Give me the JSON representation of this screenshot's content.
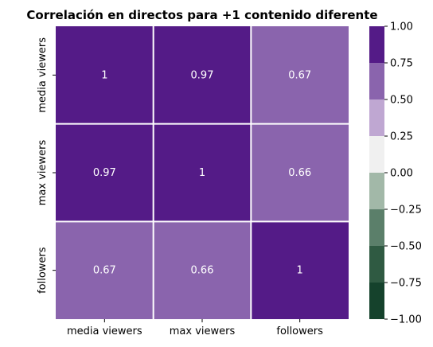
{
  "chart_data": {
    "type": "heatmap",
    "title": "Correlación en directos para +1 contenido diferente",
    "x_labels": [
      "media viewers",
      "max viewers",
      "followers"
    ],
    "y_labels": [
      "media viewers",
      "max viewers",
      "followers"
    ],
    "matrix": [
      [
        1,
        0.97,
        0.67
      ],
      [
        0.97,
        1,
        0.66
      ],
      [
        0.67,
        0.66,
        1
      ]
    ],
    "cell_labels": [
      [
        "1",
        "0.97",
        "0.67"
      ],
      [
        "0.97",
        "1",
        "0.66"
      ],
      [
        "0.67",
        "0.66",
        "1"
      ]
    ],
    "colorbar": {
      "range": [
        -1.0,
        1.0
      ],
      "tick_values": [
        1.0,
        0.75,
        0.5,
        0.25,
        0.0,
        -0.25,
        -0.5,
        -0.75,
        -1.0
      ],
      "tick_labels": [
        "1.00",
        "0.75",
        "0.50",
        "0.25",
        "0.00",
        "−0.25",
        "−0.50",
        "−0.75",
        "−1.00"
      ],
      "bins": [
        {
          "from": 0.75,
          "to": 1.0,
          "color": "#541b87"
        },
        {
          "from": 0.5,
          "to": 0.75,
          "color": "#8a64ad"
        },
        {
          "from": 0.25,
          "to": 0.5,
          "color": "#bfa7d2"
        },
        {
          "from": 0.0,
          "to": 0.25,
          "color": "#f0f0f0"
        },
        {
          "from": -0.25,
          "to": 0.0,
          "color": "#a2b8a8"
        },
        {
          "from": -0.5,
          "to": -0.25,
          "color": "#5b7f6a"
        },
        {
          "from": -0.75,
          "to": -0.5,
          "color": "#2f5a42"
        },
        {
          "from": -1.0,
          "to": -0.75,
          "color": "#15422c"
        }
      ]
    },
    "annotation_color": "#ffffff",
    "grid_line_color": "#ffffff"
  }
}
